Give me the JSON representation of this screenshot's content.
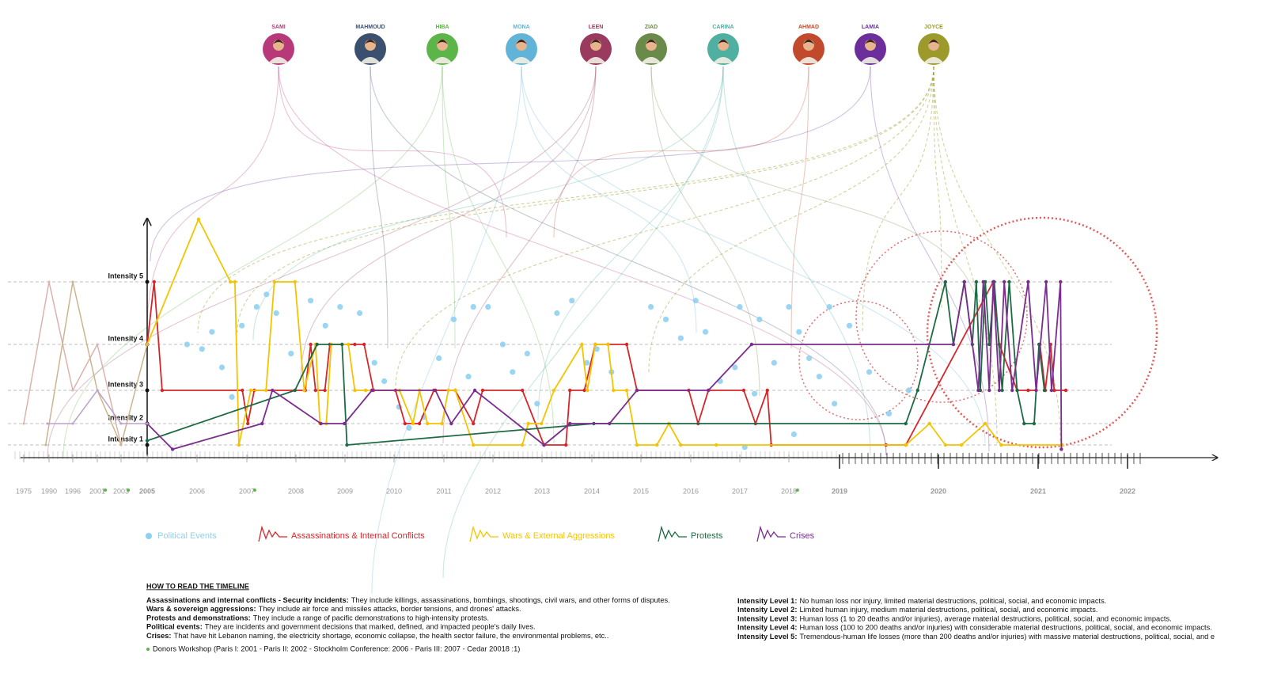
{
  "people": [
    {
      "name": "SAMI",
      "color": "#b8397a"
    },
    {
      "name": "MAHMOUD",
      "color": "#3b4f6e"
    },
    {
      "name": "HIBA",
      "color": "#5cb548"
    },
    {
      "name": "MONA",
      "color": "#62b3d8"
    },
    {
      "name": "LEEN",
      "color": "#9a3a5e"
    },
    {
      "name": "ZIAD",
      "color": "#6a8a4a"
    },
    {
      "name": "CARINA",
      "color": "#4fb0a2"
    },
    {
      "name": "AHMAD",
      "color": "#c24a2c"
    },
    {
      "name": "LAMIA",
      "color": "#6b2e9a"
    },
    {
      "name": "JOYCE",
      "color": "#9c9a2a"
    }
  ],
  "chart_data": {
    "type": "line",
    "xlim": [
      1973,
      2023
    ],
    "ylim": [
      0.5,
      6
    ],
    "grid": true,
    "xticks": [
      1975,
      1990,
      1996,
      2001,
      2003,
      2005,
      2006,
      2007,
      2008,
      2009,
      2010,
      2011,
      2012,
      2013,
      2014,
      2015,
      2016,
      2017,
      2018,
      2019,
      2020,
      2021,
      2022
    ],
    "yticks": [
      {
        "value": 1,
        "label": "Intensity 1"
      },
      {
        "value": 2,
        "label": "Intensity 2"
      },
      {
        "value": 3,
        "label": "Intensity 3"
      },
      {
        "value": 4,
        "label": "Intensity 4"
      },
      {
        "value": 5,
        "label": "Intensity 5"
      }
    ],
    "donor_markers": [
      2001.67,
      2003.55,
      2007.16,
      2018.17
    ],
    "donor_color": "#5cb548",
    "series": [
      {
        "name": "Political Events",
        "type": "scatter",
        "color": "#8fd0f0",
        "x": [
          2005.8,
          2006.1,
          2006.3,
          2006.5,
          2006.7,
          2006.9,
          2007.2,
          2007.4,
          2007.6,
          2007.9,
          2008.3,
          2008.6,
          2008.9,
          2009.3,
          2009.6,
          2009.8,
          2010.1,
          2010.3,
          2010.6,
          2010.9,
          2011.2,
          2011.5,
          2011.6,
          2011.9,
          2012.2,
          2012.4,
          2012.7,
          2012.9,
          2013.3,
          2013.6,
          2013.9,
          2014.1,
          2014.4,
          2015.2,
          2015.5,
          2015.8,
          2016.1,
          2016.3,
          2016.6,
          2016.9,
          2017.0,
          2017.3,
          2017.4,
          2017.7,
          2018.0,
          2018.2,
          2018.4,
          2018.6,
          2018.8,
          2018.9,
          2019.1,
          2019.3,
          2019.5,
          2019.7,
          2018.1,
          2017.1
        ],
        "values": [
          4,
          3.9,
          4.2,
          3.5,
          2.8,
          4.3,
          4.6,
          4.8,
          4.5,
          3.8,
          4.7,
          4.3,
          4.6,
          4.5,
          3.6,
          3.2,
          2.5,
          1.8,
          2.2,
          3.7,
          4.4,
          3.3,
          4.6,
          4.6,
          4,
          3.4,
          3.8,
          2.6,
          4.5,
          4.7,
          3.6,
          3.9,
          3.4,
          4.6,
          4.4,
          4.1,
          4.7,
          4.2,
          3.2,
          3.5,
          4.6,
          2.9,
          4.4,
          3.6,
          4.6,
          4.2,
          3.7,
          3.3,
          4.6,
          2.6,
          4.3,
          3.4,
          2.3,
          3,
          1.5,
          0.9
        ]
      },
      {
        "name": "Assassinations & Internal Conflicts",
        "color": "#d7262a",
        "x": [
          2005.0,
          2005.14,
          2005.3,
          2006.91,
          2007.02,
          2007.15,
          2008.19,
          2008.3,
          2008.4,
          2008.59,
          2008.69,
          2009.2,
          2009.39,
          2009.58,
          2010.03,
          2010.22,
          2010.51,
          2010.8,
          2011.23,
          2011.6,
          2011.79,
          2012.6,
          2013.04,
          2013.48,
          2013.56,
          2013.85,
          2014.07,
          2014.33,
          2014.71,
          2014.92,
          2015.96,
          2016.15,
          2016.36,
          2017.08,
          2017.32,
          2017.56,
          2017.64,
          2019.47,
          2019.67,
          2020.55,
          2020.61,
          2020.79,
          2020.9,
          2020.98,
          2021.02,
          2021.08,
          2021.14,
          2021.18,
          2021.31
        ],
        "values": [
          4,
          5,
          3,
          3,
          2,
          3,
          3,
          4,
          3,
          3,
          4,
          4,
          4,
          3,
          3,
          2,
          2,
          3,
          3,
          2,
          3,
          3,
          1,
          1,
          3,
          3,
          4,
          4,
          4,
          3,
          3,
          2,
          3,
          3,
          2,
          3,
          1,
          1,
          1,
          5,
          4,
          3,
          3,
          3,
          4,
          3,
          4,
          3,
          3
        ]
      },
      {
        "name": "Wars & External Aggressions",
        "color": "#f5c400",
        "x": [
          2005.0,
          2006.03,
          2006.67,
          2006.76,
          2006.84,
          2007.08,
          2007.39,
          2007.56,
          2007.98,
          2008.17,
          2008.4,
          2008.49,
          2008.62,
          2008.72,
          2009.07,
          2009.2,
          2009.42,
          2009.55,
          2010.11,
          2010.38,
          2010.51,
          2010.67,
          2010.96,
          2011.09,
          2011.23,
          2011.6,
          2012.6,
          2012.72,
          2012.99,
          2013.24,
          2013.8,
          2013.91,
          2014.07,
          2014.33,
          2014.44,
          2014.71,
          2014.92,
          2015.32,
          2015.56,
          2015.8,
          2016.52,
          2019.67,
          2019.91,
          2020.07,
          2020.23,
          2020.47,
          2020.63,
          2021.27
        ],
        "values": [
          4,
          6,
          5,
          5,
          1,
          3,
          3,
          5,
          5,
          3,
          4,
          2,
          2,
          4,
          4,
          3,
          3,
          3,
          3,
          2,
          3,
          2,
          2,
          3,
          3,
          1,
          1,
          2,
          2,
          3,
          4,
          3,
          4,
          4,
          3,
          3,
          1,
          1,
          2,
          1,
          1,
          1,
          2,
          1,
          1,
          2,
          1,
          1
        ]
      },
      {
        "name": "Protests",
        "color": "#1d6b45",
        "x": [
          2005.0,
          2007.98,
          2008.43,
          2008.94,
          2009.04,
          2014.04,
          2019.67,
          2019.79,
          2020.07,
          2020.15,
          2020.26,
          2020.34,
          2020.38,
          2020.42,
          2020.47,
          2020.51,
          2020.56,
          2020.64,
          2020.71,
          2020.79,
          2020.86,
          2020.96,
          2021.01,
          2021.07
        ],
        "values": [
          1.2,
          3,
          4,
          4,
          1,
          2,
          2,
          3,
          5,
          4,
          5,
          4,
          5,
          3,
          5,
          4,
          5,
          3,
          5,
          3,
          2,
          2,
          4,
          3
        ]
      },
      {
        "name": "Crises",
        "color": "#7b2d8e",
        "x": [
          2005.0,
          2005.51,
          2007.31,
          2007.52,
          2008.51,
          2008.99,
          2009.55,
          2010.83,
          2011.15,
          2011.63,
          2013.04,
          2013.56,
          2014.36,
          2014.92,
          2016.36,
          2017.24,
          2020.15,
          2020.26,
          2020.4,
          2020.45,
          2020.51,
          2020.55,
          2020.61,
          2020.66,
          2020.74,
          2020.9,
          2020.98,
          2021.09,
          2021.15,
          2021.25,
          2021.26
        ],
        "values": [
          2,
          0.8,
          2,
          3,
          2,
          2,
          3,
          3,
          2,
          3,
          1,
          2,
          2,
          3,
          3,
          4,
          4,
          5,
          3,
          5,
          3,
          5,
          3,
          5,
          3,
          5,
          3,
          5,
          3,
          5,
          0.8
        ]
      },
      {
        "color": "#dbb3ae",
        "x": [
          1975,
          1990,
          1996,
          2001,
          2003
        ],
        "values": [
          2,
          5,
          3,
          4,
          1
        ]
      },
      {
        "color": "#cdb48e",
        "x": [
          1988,
          1996,
          2001,
          2003,
          2005
        ],
        "values": [
          1,
          5,
          3,
          1,
          4
        ]
      },
      {
        "color": "#bba2cb",
        "x": [
          1989,
          1996,
          2001,
          2003,
          2005
        ],
        "values": [
          2,
          2,
          3,
          2,
          2
        ]
      }
    ]
  },
  "notes": {
    "heading": "HOW TO READ THE TIMELINE",
    "definitions": [
      {
        "term": "Assassinations and internal conflicts - Security incidents:",
        "text": "They include killings, assassinations, bombings, shootings, civil wars, and other forms of disputes."
      },
      {
        "term": "Wars & sovereign aggressions:",
        "text": "They include air force and missiles attacks, border tensions, and drones' attacks."
      },
      {
        "term": "Protests and demonstrations:",
        "text": "They include a range of pacific demonstrations to high-intensity protests."
      },
      {
        "term": "Political events:",
        "text": "They are incidents and government decisions that marked, defined, and impacted people's daily lives."
      },
      {
        "term": "Crises:",
        "text": "That have hit Lebanon naming, the electricity shortage, economic collapse, the health sector failure, the environmental problems, etc.."
      }
    ],
    "donors": "Donors Workshop (Paris I: 2001 - Paris II: 2002 - Stockholm Conference: 2006 - Paris III: 2007 - Cedar 20018 :1)",
    "intensity": [
      {
        "term": "Intensity Level 1:",
        "text": "No human loss nor injury, limited material destructions, political, social, and economic impacts."
      },
      {
        "term": "Intensity Level 2:",
        "text": "Limited human injury, medium material destructions, political, social, and economic impacts."
      },
      {
        "term": "Intensity Level 3:",
        "text": "Human loss (1 to 20 deaths and/or injuries), average material destructions, political, social, and economic impacts."
      },
      {
        "term": "Intensity Level 4:",
        "text": "Human loss (100 to 200 deaths and/or injuries) with considerable material destructions, political, social, and economic impacts."
      },
      {
        "term": "Intensity Level 5:",
        "text": "Tremendous-human life losses (more than 200 deaths and/or injuries) with massive material destructions, political, social, and e"
      }
    ]
  }
}
